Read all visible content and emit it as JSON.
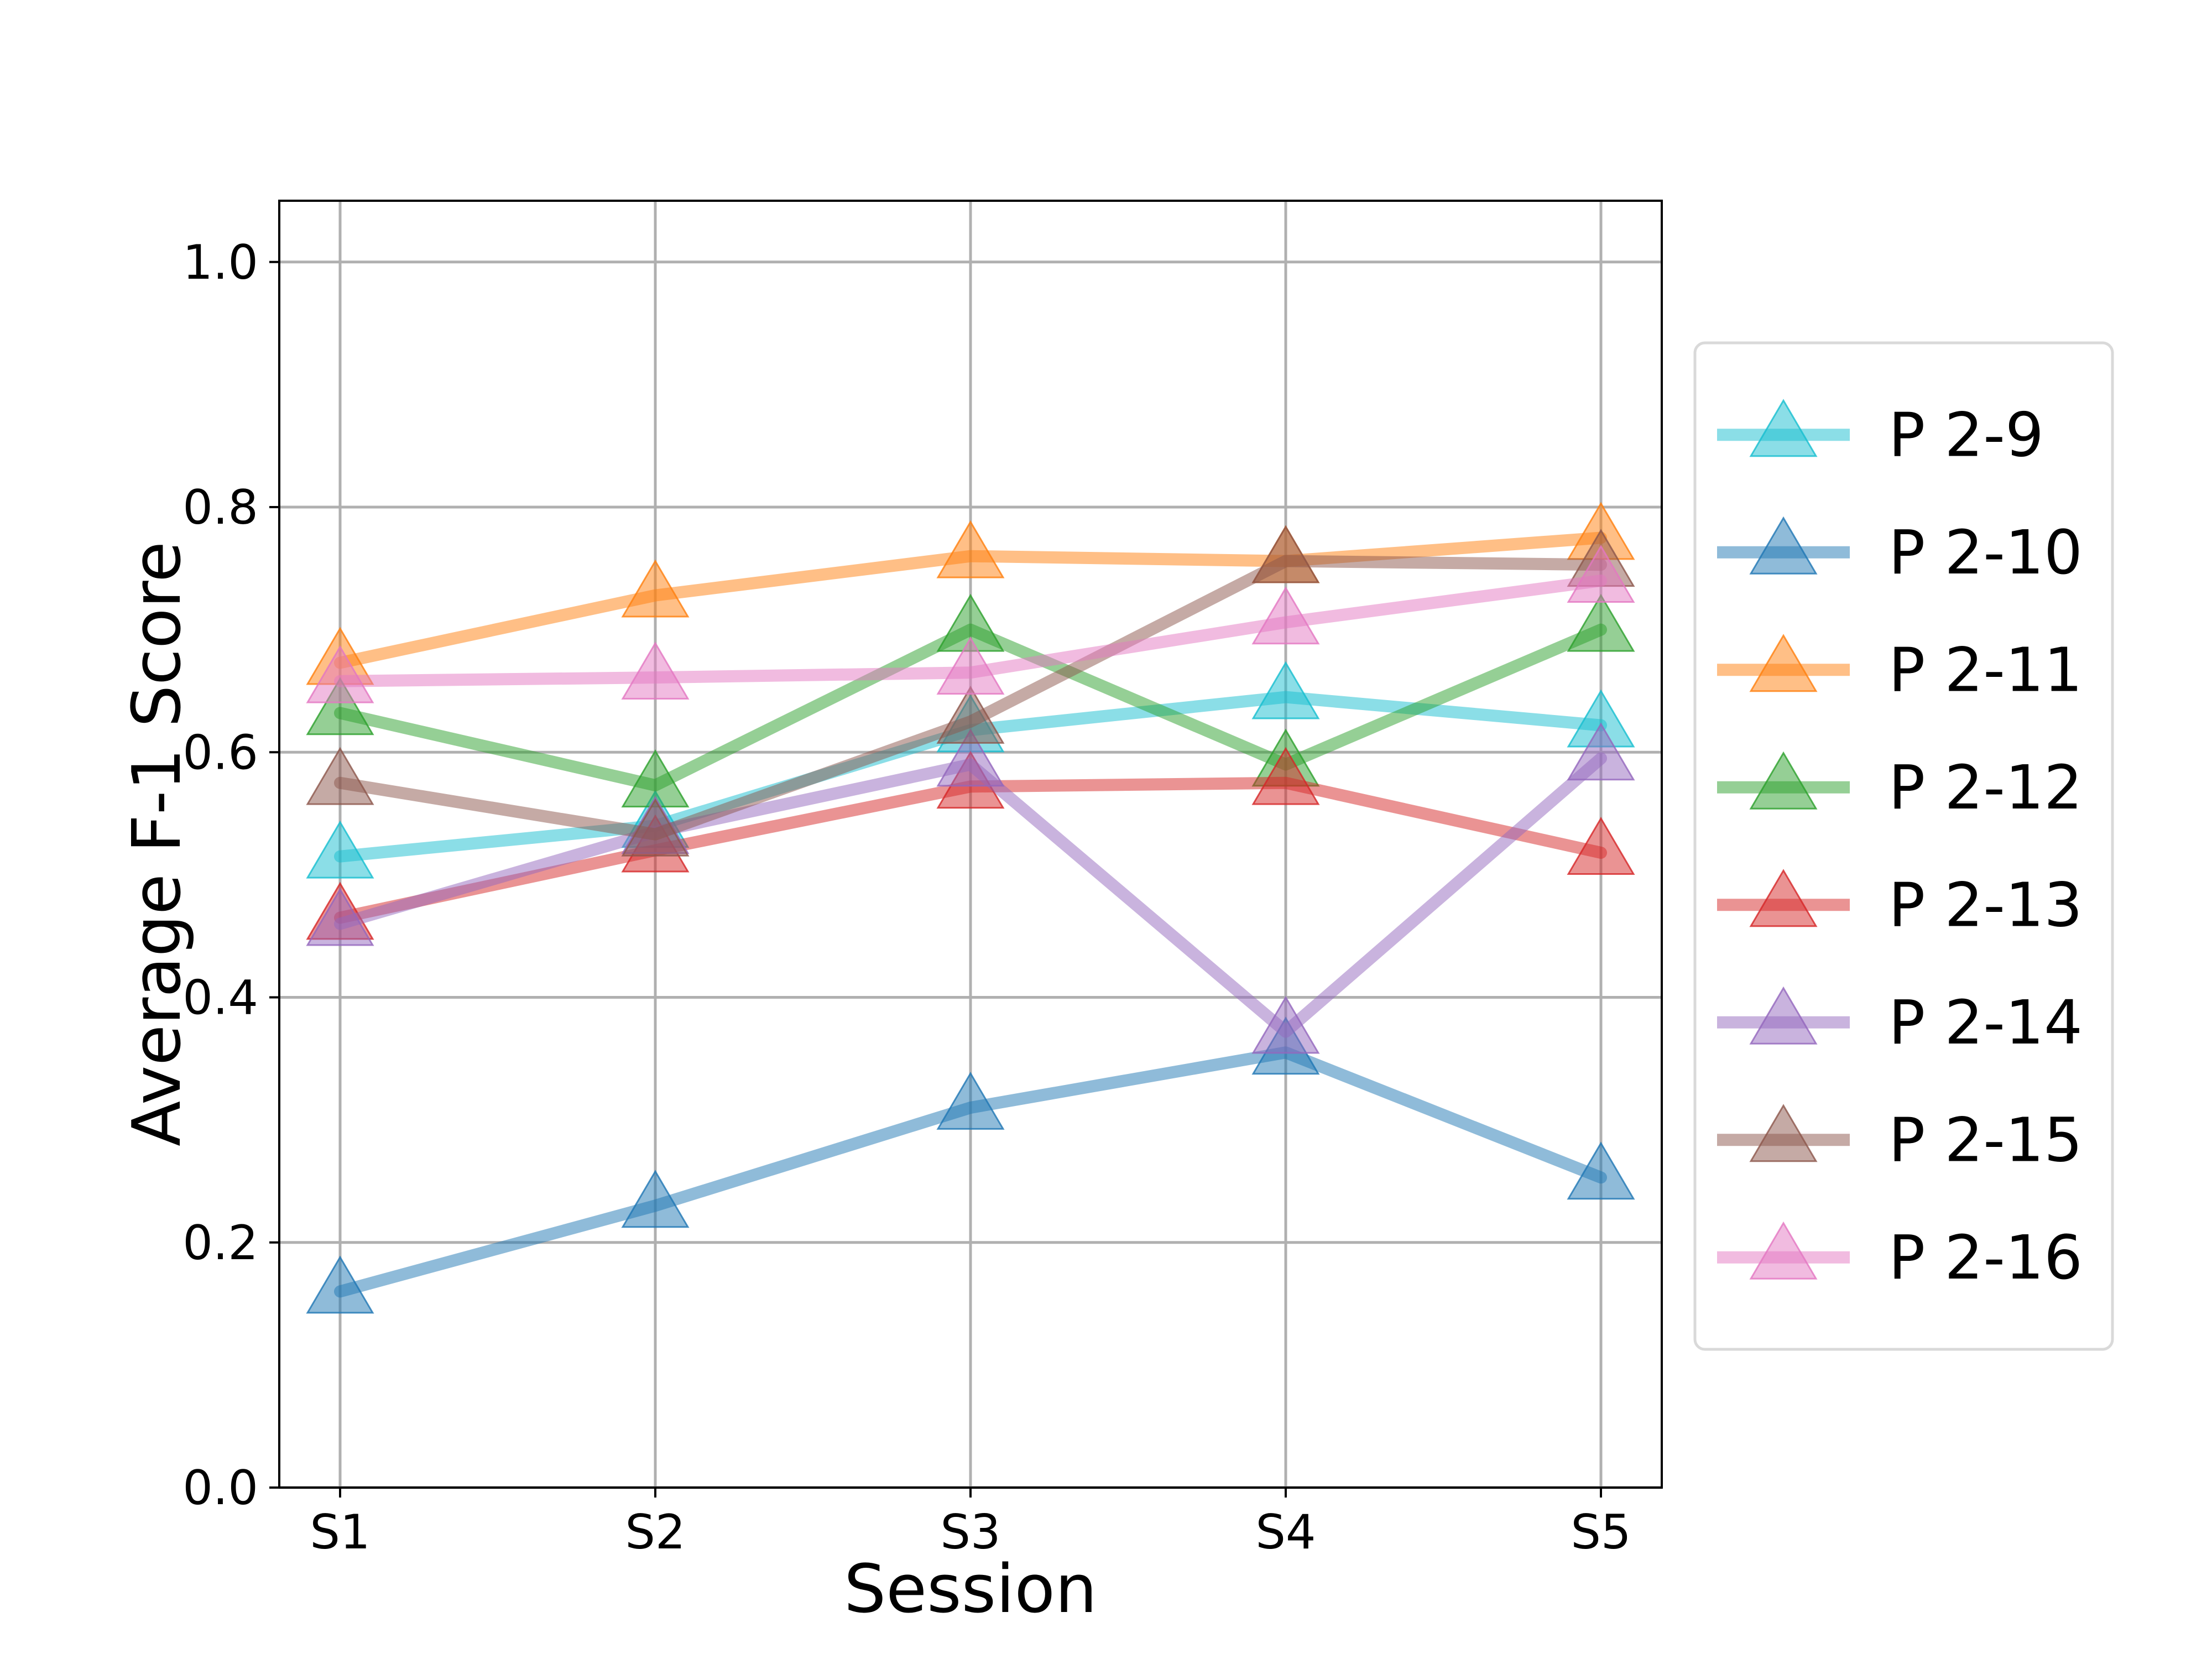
{
  "chart_data": {
    "type": "line",
    "title": "",
    "xlabel": "Session",
    "ylabel": "Average F-1 Score",
    "categories": [
      "S1",
      "S2",
      "S3",
      "S4",
      "S5"
    ],
    "ylim": [
      0.0,
      1.05
    ],
    "yticks": [
      0.0,
      0.2,
      0.4,
      0.6,
      0.8,
      1.0
    ],
    "ytick_labels": [
      "0.0",
      "0.2",
      "0.4",
      "0.6",
      "0.8",
      "1.0"
    ],
    "grid": true,
    "marker": "triangle",
    "legend_position": "right-outside",
    "series": [
      {
        "name": "P 2-9",
        "color": "#17becf",
        "values": [
          0.515,
          0.54,
          0.618,
          0.645,
          0.622
        ]
      },
      {
        "name": "P 2-10",
        "color": "#1f77b4",
        "values": [
          0.16,
          0.23,
          0.31,
          0.355,
          0.253
        ]
      },
      {
        "name": "P 2-11",
        "color": "#ff7f0e",
        "values": [
          0.673,
          0.728,
          0.76,
          0.756,
          0.775
        ]
      },
      {
        "name": "P 2-12",
        "color": "#2ca02c",
        "values": [
          0.632,
          0.573,
          0.7,
          0.59,
          0.7
        ]
      },
      {
        "name": "P 2-13",
        "color": "#d62728",
        "values": [
          0.465,
          0.52,
          0.572,
          0.575,
          0.518
        ]
      },
      {
        "name": "P 2-14",
        "color": "#9467bd",
        "values": [
          0.46,
          0.535,
          0.59,
          0.372,
          0.595
        ]
      },
      {
        "name": "P 2-15",
        "color": "#8c564b",
        "values": [
          0.575,
          0.533,
          0.625,
          0.756,
          0.753
        ]
      },
      {
        "name": "P 2-16",
        "color": "#e377c2",
        "values": [
          0.658,
          0.661,
          0.665,
          0.706,
          0.74
        ]
      }
    ]
  }
}
